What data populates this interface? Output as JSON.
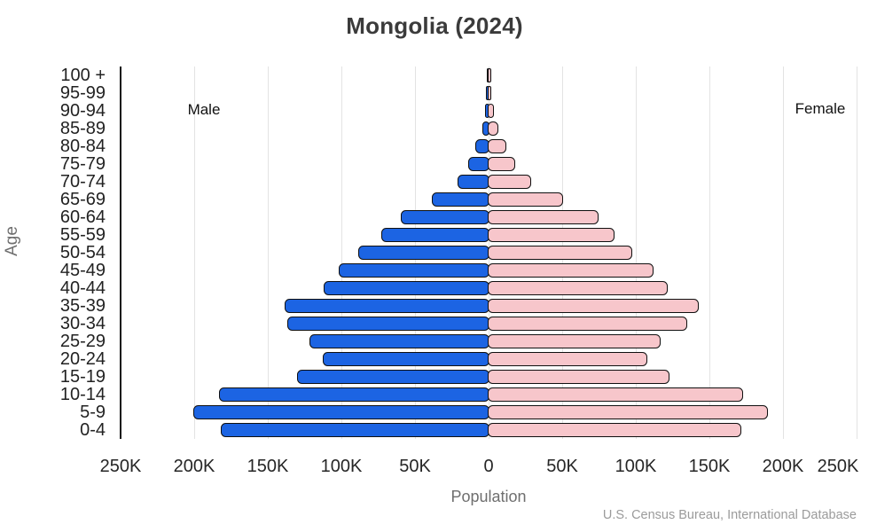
{
  "title": "Mongolia (2024)",
  "labels": {
    "male": "Male",
    "female": "Female"
  },
  "axes": {
    "y_label": "Age",
    "x_label": "Population",
    "x_ticks": [
      "250K",
      "200K",
      "150K",
      "100K",
      "50K",
      "0",
      "50K",
      "100K",
      "150K",
      "200K",
      "250K"
    ]
  },
  "source": "U.S. Census Bureau, International Database",
  "colors": {
    "male_bar": "#1c64e3",
    "female_bar": "#f7c6cb",
    "bar_outline": "#101010",
    "gridline": "#e3e3e3",
    "axis_line": "#161616",
    "title": "#3b3b3b",
    "tick": "#262626",
    "muted": "#6f6f6f",
    "source": "#9b9b9b"
  },
  "chart_data": {
    "type": "bar",
    "subtype": "population-pyramid",
    "title": "Mongolia (2024)",
    "xlabel": "Population",
    "ylabel": "Age",
    "unit": "persons",
    "x_range_persons": [
      -250000,
      250000
    ],
    "grid": true,
    "categories_top_to_bottom": [
      "100 +",
      "95-99",
      "90-94",
      "85-89",
      "80-84",
      "75-79",
      "70-74",
      "65-69",
      "60-64",
      "55-59",
      "50-54",
      "45-49",
      "40-44",
      "35-39",
      "30-34",
      "25-29",
      "20-24",
      "15-19",
      "10-14",
      "5-9",
      "0-4"
    ],
    "series": [
      {
        "name": "Male",
        "side": "left",
        "values": [
          400,
          700,
          1500,
          3500,
          8000,
          13000,
          20000,
          38000,
          59000,
          72000,
          88000,
          101000,
          111000,
          138000,
          136000,
          121000,
          112000,
          129000,
          182000,
          200000,
          181000
        ]
      },
      {
        "name": "Female",
        "side": "right",
        "values": [
          700,
          1200,
          2800,
          5500,
          11000,
          17000,
          28000,
          50000,
          74000,
          85000,
          97000,
          111000,
          121000,
          142000,
          134000,
          116000,
          107000,
          122000,
          172000,
          189000,
          171000
        ]
      }
    ]
  }
}
